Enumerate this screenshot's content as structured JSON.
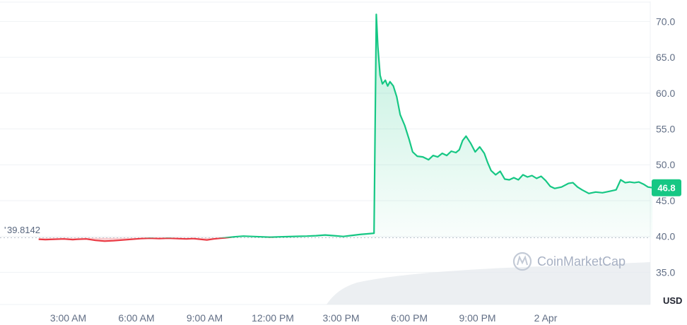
{
  "chart_data": {
    "type": "line",
    "currency_label": "USD",
    "reference_label": "39.8142",
    "reference_value": 39.8142,
    "current_value_label": "46.8",
    "current_value": 46.8,
    "watermark": "CoinMarketCap",
    "ylim": [
      30.5,
      73.0
    ],
    "xlim": [
      0,
      28.6
    ],
    "y_ticks": [
      {
        "value": 35,
        "label": "35.0"
      },
      {
        "value": 40,
        "label": "40.0"
      },
      {
        "value": 45,
        "label": "45.0"
      },
      {
        "value": 50,
        "label": "50.0"
      },
      {
        "value": 55,
        "label": "55.0"
      },
      {
        "value": 60,
        "label": "60.0"
      },
      {
        "value": 65,
        "label": "65.0"
      },
      {
        "value": 70,
        "label": "70.0"
      }
    ],
    "x_ticks": [
      {
        "value": 3,
        "label": "3:00 AM"
      },
      {
        "value": 6,
        "label": "6:00 AM"
      },
      {
        "value": 9,
        "label": "9:00 AM"
      },
      {
        "value": 12,
        "label": "12:00 PM"
      },
      {
        "value": 15,
        "label": "3:00 PM"
      },
      {
        "value": 18,
        "label": "6:00 PM"
      },
      {
        "value": 21,
        "label": "9:00 PM"
      },
      {
        "value": 24,
        "label": "2 Apr"
      }
    ],
    "colors": {
      "up": "#16c784",
      "down": "#ea3943",
      "grid": "#eff2f5",
      "axis_text": "#616e85",
      "volume": "#e6e9ee"
    },
    "series": [
      {
        "values": [
          [
            1.7,
            39.6
          ],
          [
            2.0,
            39.55
          ],
          [
            2.4,
            39.6
          ],
          [
            2.8,
            39.65
          ],
          [
            3.2,
            39.55
          ],
          [
            3.4,
            39.6
          ],
          [
            3.8,
            39.65
          ],
          [
            4.2,
            39.45
          ],
          [
            4.6,
            39.35
          ],
          [
            5.0,
            39.4
          ],
          [
            5.4,
            39.5
          ],
          [
            5.8,
            39.6
          ],
          [
            6.2,
            39.7
          ],
          [
            6.6,
            39.75
          ],
          [
            7.0,
            39.7
          ],
          [
            7.4,
            39.75
          ],
          [
            7.8,
            39.7
          ],
          [
            8.2,
            39.65
          ],
          [
            8.5,
            39.7
          ],
          [
            8.8,
            39.6
          ],
          [
            9.1,
            39.5
          ],
          [
            9.4,
            39.65
          ],
          [
            9.7,
            39.75
          ],
          [
            9.9,
            39.8
          ],
          [
            10.3,
            39.95
          ],
          [
            10.7,
            40.05
          ],
          [
            11.1,
            40.0
          ],
          [
            11.5,
            39.95
          ],
          [
            11.9,
            39.9
          ],
          [
            12.3,
            39.95
          ],
          [
            12.7,
            39.98
          ],
          [
            13.1,
            40.02
          ],
          [
            13.5,
            40.05
          ],
          [
            13.9,
            40.1
          ],
          [
            14.3,
            40.2
          ],
          [
            14.7,
            40.1
          ],
          [
            15.1,
            40.0
          ],
          [
            15.5,
            40.15
          ],
          [
            15.9,
            40.3
          ],
          [
            16.1,
            40.35
          ],
          [
            16.45,
            40.45
          ],
          [
            16.55,
            71.0
          ],
          [
            16.62,
            66.5
          ],
          [
            16.72,
            62.5
          ],
          [
            16.82,
            61.3
          ],
          [
            16.95,
            61.8
          ],
          [
            17.05,
            61.0
          ],
          [
            17.15,
            61.6
          ],
          [
            17.3,
            61.0
          ],
          [
            17.45,
            59.5
          ],
          [
            17.6,
            57.0
          ],
          [
            17.8,
            55.5
          ],
          [
            18.0,
            53.5
          ],
          [
            18.15,
            51.8
          ],
          [
            18.35,
            51.2
          ],
          [
            18.6,
            51.1
          ],
          [
            18.85,
            50.7
          ],
          [
            19.05,
            51.3
          ],
          [
            19.25,
            51.1
          ],
          [
            19.45,
            51.6
          ],
          [
            19.65,
            51.3
          ],
          [
            19.85,
            51.9
          ],
          [
            20.05,
            51.7
          ],
          [
            20.2,
            52.1
          ],
          [
            20.35,
            53.4
          ],
          [
            20.5,
            54.0
          ],
          [
            20.7,
            53.0
          ],
          [
            20.9,
            51.8
          ],
          [
            21.1,
            52.5
          ],
          [
            21.3,
            51.6
          ],
          [
            21.45,
            50.3
          ],
          [
            21.6,
            49.2
          ],
          [
            21.8,
            48.6
          ],
          [
            22.0,
            49.1
          ],
          [
            22.2,
            48.0
          ],
          [
            22.4,
            47.9
          ],
          [
            22.6,
            48.2
          ],
          [
            22.8,
            47.9
          ],
          [
            23.0,
            48.6
          ],
          [
            23.2,
            48.3
          ],
          [
            23.4,
            48.5
          ],
          [
            23.6,
            48.1
          ],
          [
            23.8,
            48.4
          ],
          [
            24.0,
            47.8
          ],
          [
            24.2,
            47.0
          ],
          [
            24.4,
            46.7
          ],
          [
            24.7,
            46.9
          ],
          [
            25.0,
            47.4
          ],
          [
            25.2,
            47.5
          ],
          [
            25.4,
            46.9
          ],
          [
            25.6,
            46.5
          ],
          [
            25.9,
            46.0
          ],
          [
            26.2,
            46.2
          ],
          [
            26.5,
            46.1
          ],
          [
            26.8,
            46.3
          ],
          [
            27.1,
            46.5
          ],
          [
            27.3,
            47.9
          ],
          [
            27.5,
            47.5
          ],
          [
            27.7,
            47.6
          ],
          [
            27.9,
            47.5
          ],
          [
            28.1,
            47.6
          ],
          [
            28.3,
            47.3
          ],
          [
            28.5,
            46.9
          ],
          [
            28.7,
            46.8
          ]
        ]
      }
    ]
  }
}
